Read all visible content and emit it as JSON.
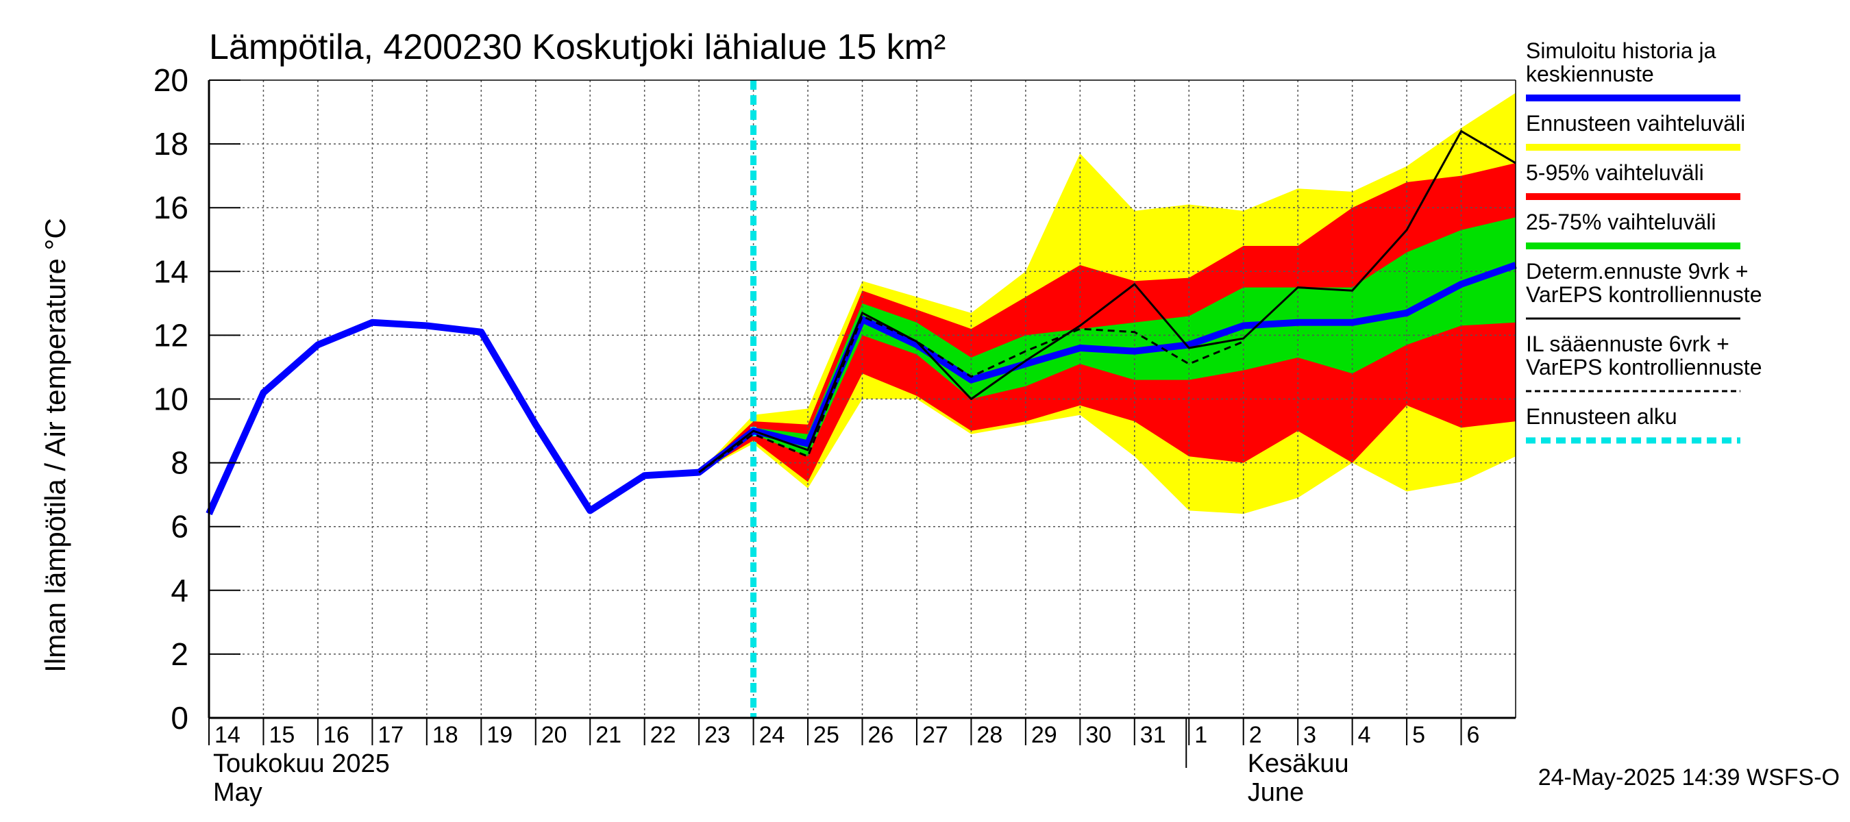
{
  "chart_data": {
    "type": "area",
    "title": "Lämpötila, 4200230 Koskutjoki lähialue 15 km²",
    "ylabel": "Ilman lämpötila / Air temperature   °C",
    "ylim": [
      0,
      20
    ],
    "yticks": [
      "0",
      "2",
      "4",
      "6",
      "8",
      "10",
      "12",
      "14",
      "16",
      "18",
      "20"
    ],
    "xlim": [
      0,
      24
    ],
    "x_ticks": [
      {
        "x": 0,
        "label": "14"
      },
      {
        "x": 1,
        "label": "15"
      },
      {
        "x": 2,
        "label": "16"
      },
      {
        "x": 3,
        "label": "17"
      },
      {
        "x": 4,
        "label": "18"
      },
      {
        "x": 5,
        "label": "19"
      },
      {
        "x": 6,
        "label": "20"
      },
      {
        "x": 7,
        "label": "21"
      },
      {
        "x": 8,
        "label": "22"
      },
      {
        "x": 9,
        "label": "23"
      },
      {
        "x": 10,
        "label": "24"
      },
      {
        "x": 11,
        "label": "25"
      },
      {
        "x": 12,
        "label": "26"
      },
      {
        "x": 13,
        "label": "27"
      },
      {
        "x": 14,
        "label": "28"
      },
      {
        "x": 15,
        "label": "29"
      },
      {
        "x": 16,
        "label": "30"
      },
      {
        "x": 17,
        "label": "31"
      },
      {
        "x": 18,
        "label": "1"
      },
      {
        "x": 19,
        "label": "2"
      },
      {
        "x": 20,
        "label": "3"
      },
      {
        "x": 21,
        "label": "4"
      },
      {
        "x": 22,
        "label": "5"
      },
      {
        "x": 23,
        "label": "6"
      }
    ],
    "month_labels": [
      {
        "x": 0,
        "lines": [
          "Toukokuu  2025",
          "May"
        ]
      },
      {
        "x": 19,
        "lines": [
          "Kesäkuu",
          "June"
        ]
      }
    ],
    "month_divider_x": 18,
    "forecast_start_x": 10,
    "grid": true,
    "bands": [
      {
        "name": "Ennusteen vaihteluväli",
        "color": "#ffff00",
        "x": [
          9,
          10,
          11,
          12,
          13,
          14,
          15,
          16,
          17,
          18,
          19,
          20,
          21,
          22,
          23,
          24
        ],
        "upper": [
          7.7,
          9.5,
          9.7,
          13.7,
          13.2,
          12.7,
          14.0,
          17.7,
          15.9,
          16.1,
          15.9,
          16.6,
          16.5,
          17.3,
          18.5,
          19.6
        ],
        "lower": [
          7.7,
          8.6,
          7.2,
          10.0,
          10.0,
          8.9,
          9.2,
          9.5,
          8.2,
          6.5,
          6.4,
          6.9,
          8.0,
          7.1,
          7.4,
          8.2
        ]
      },
      {
        "name": "5-95% vaihteluväli",
        "color": "#ff0000",
        "x": [
          9,
          10,
          11,
          12,
          13,
          14,
          15,
          16,
          17,
          18,
          19,
          20,
          21,
          22,
          23,
          24
        ],
        "upper": [
          7.7,
          9.3,
          9.2,
          13.4,
          12.8,
          12.2,
          13.2,
          14.2,
          13.7,
          13.8,
          14.8,
          14.8,
          16.0,
          16.8,
          17.0,
          17.4
        ],
        "lower": [
          7.7,
          8.7,
          7.4,
          10.8,
          10.1,
          9.0,
          9.3,
          9.8,
          9.3,
          8.2,
          8.0,
          9.0,
          8.0,
          9.8,
          9.1,
          9.3
        ]
      },
      {
        "name": "25-75% vaihteluväli",
        "color": "#00e000",
        "x": [
          10,
          11,
          12,
          13,
          14,
          15,
          16,
          17,
          18,
          19,
          20,
          21,
          22,
          23,
          24
        ],
        "upper": [
          9.1,
          8.9,
          13.0,
          12.4,
          11.3,
          12.0,
          12.2,
          12.4,
          12.6,
          13.5,
          13.5,
          13.5,
          14.6,
          15.3,
          15.7
        ],
        "lower": [
          8.9,
          8.2,
          12.0,
          11.4,
          10.0,
          10.4,
          11.1,
          10.6,
          10.6,
          10.9,
          11.3,
          10.8,
          11.7,
          12.3,
          12.4
        ]
      }
    ],
    "series": [
      {
        "name": "Simuloitu historia ja keskiennuste",
        "color": "#0000ff",
        "x": [
          0,
          1,
          2,
          3,
          4,
          5,
          6,
          7,
          8,
          9,
          10,
          11,
          12,
          13,
          14,
          15,
          16,
          17,
          18,
          19,
          20,
          21,
          22,
          23,
          24
        ],
        "values": [
          6.4,
          10.2,
          11.7,
          12.4,
          12.3,
          12.1,
          9.2,
          6.5,
          7.6,
          7.7,
          9.0,
          8.6,
          12.5,
          11.7,
          10.6,
          11.1,
          11.6,
          11.5,
          11.7,
          12.3,
          12.4,
          12.4,
          12.7,
          13.6,
          14.2
        ]
      },
      {
        "name": "Determ.ennuste 9vrk + VarEPS kontrolliennuste",
        "color": "#000000",
        "x": [
          9,
          10,
          11,
          12,
          13,
          14,
          15,
          16,
          17,
          18,
          19,
          20,
          21,
          22,
          23,
          24
        ],
        "values": [
          7.7,
          9.0,
          8.4,
          12.7,
          11.8,
          10.0,
          11.2,
          12.3,
          13.6,
          11.6,
          11.9,
          13.5,
          13.4,
          15.3,
          18.4,
          17.4
        ]
      },
      {
        "name": "IL sääennuste 6vrk  +   VarEPS kontrolliennuste",
        "color": "#000000",
        "dashed": true,
        "x": [
          9,
          10,
          11,
          12,
          13,
          14,
          15,
          16,
          17,
          18,
          19
        ],
        "values": [
          7.7,
          8.9,
          8.2,
          12.6,
          11.8,
          10.7,
          11.5,
          12.2,
          12.1,
          11.1,
          11.8
        ]
      }
    ],
    "legend": {
      "placement": "right",
      "items": [
        {
          "lines": [
            "Simuloitu historia ja",
            "keskiennuste"
          ],
          "color": "#0000ff",
          "style": "thick"
        },
        {
          "lines": [
            "Ennusteen vaihteluväli"
          ],
          "color": "#ffff00",
          "style": "thick"
        },
        {
          "lines": [
            "5-95% vaihteluväli"
          ],
          "color": "#ff0000",
          "style": "thick"
        },
        {
          "lines": [
            "25-75% vaihteluväli"
          ],
          "color": "#00e000",
          "style": "thick"
        },
        {
          "lines": [
            "Determ.ennuste 9vrk +",
            "VarEPS kontrolliennuste"
          ],
          "color": "#000000",
          "style": "thin"
        },
        {
          "lines": [
            "IL sääennuste 6vrk  +",
            "  VarEPS kontrolliennuste"
          ],
          "color": "#000000",
          "style": "dashed"
        },
        {
          "lines": [
            "Ennusteen alku"
          ],
          "color": "#00e5e5",
          "style": "dotted"
        }
      ]
    },
    "timestamp": "24-May-2025 14:39 WSFS-O"
  }
}
